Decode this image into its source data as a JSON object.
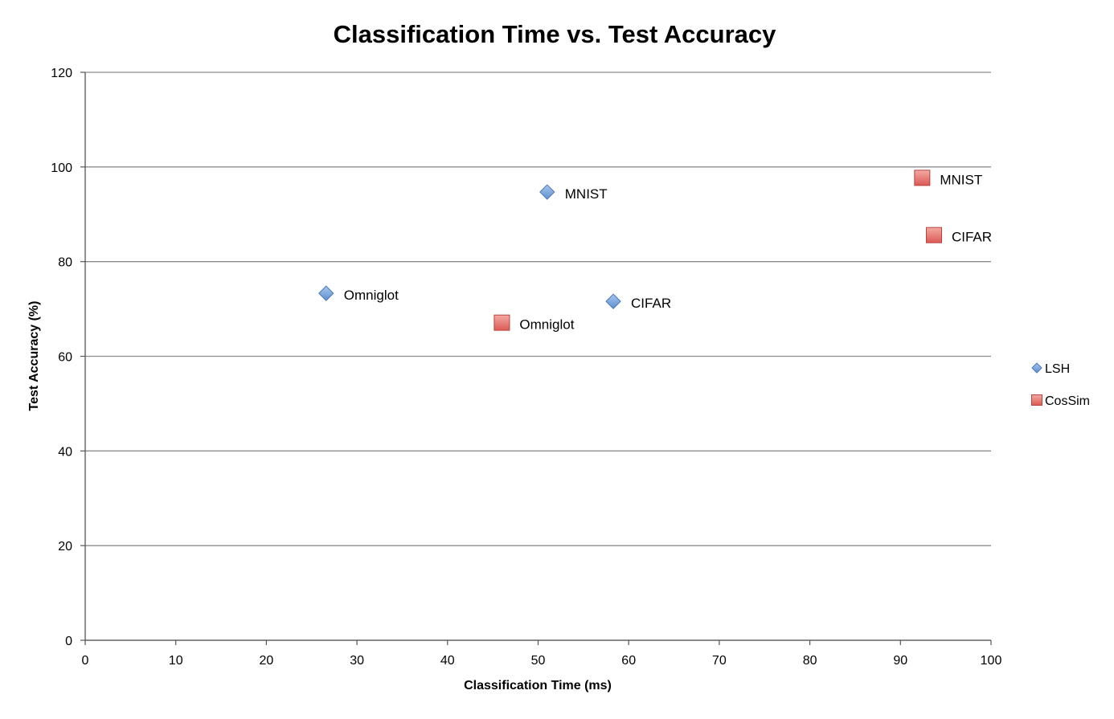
{
  "chart_data": {
    "type": "scatter",
    "title": "Classification Time vs. Test Accuracy",
    "xlabel": "Classification Time (ms)",
    "ylabel": "Test Accuracy (%)",
    "xlim": [
      0,
      100
    ],
    "ylim": [
      0,
      120
    ],
    "xticks": [
      0,
      10,
      20,
      30,
      40,
      50,
      60,
      70,
      80,
      90,
      100
    ],
    "yticks": [
      0,
      20,
      40,
      60,
      80,
      100,
      120
    ],
    "grid": "horizontal",
    "legend_position": "right",
    "series": [
      {
        "name": "LSH",
        "marker": "diamond",
        "color": "#6f9ad6",
        "points": [
          {
            "x": 26.6,
            "y": 73.3,
            "label": "Omniglot"
          },
          {
            "x": 51.0,
            "y": 94.7,
            "label": "MNIST"
          },
          {
            "x": 58.3,
            "y": 71.6,
            "label": "CIFAR"
          }
        ]
      },
      {
        "name": "CosSim",
        "marker": "square",
        "color": "#e26862",
        "points": [
          {
            "x": 46.0,
            "y": 67.1,
            "label": "Omniglot"
          },
          {
            "x": 92.4,
            "y": 97.7,
            "label": "MNIST"
          },
          {
            "x": 93.7,
            "y": 85.6,
            "label": "CIFAR"
          }
        ]
      }
    ]
  }
}
